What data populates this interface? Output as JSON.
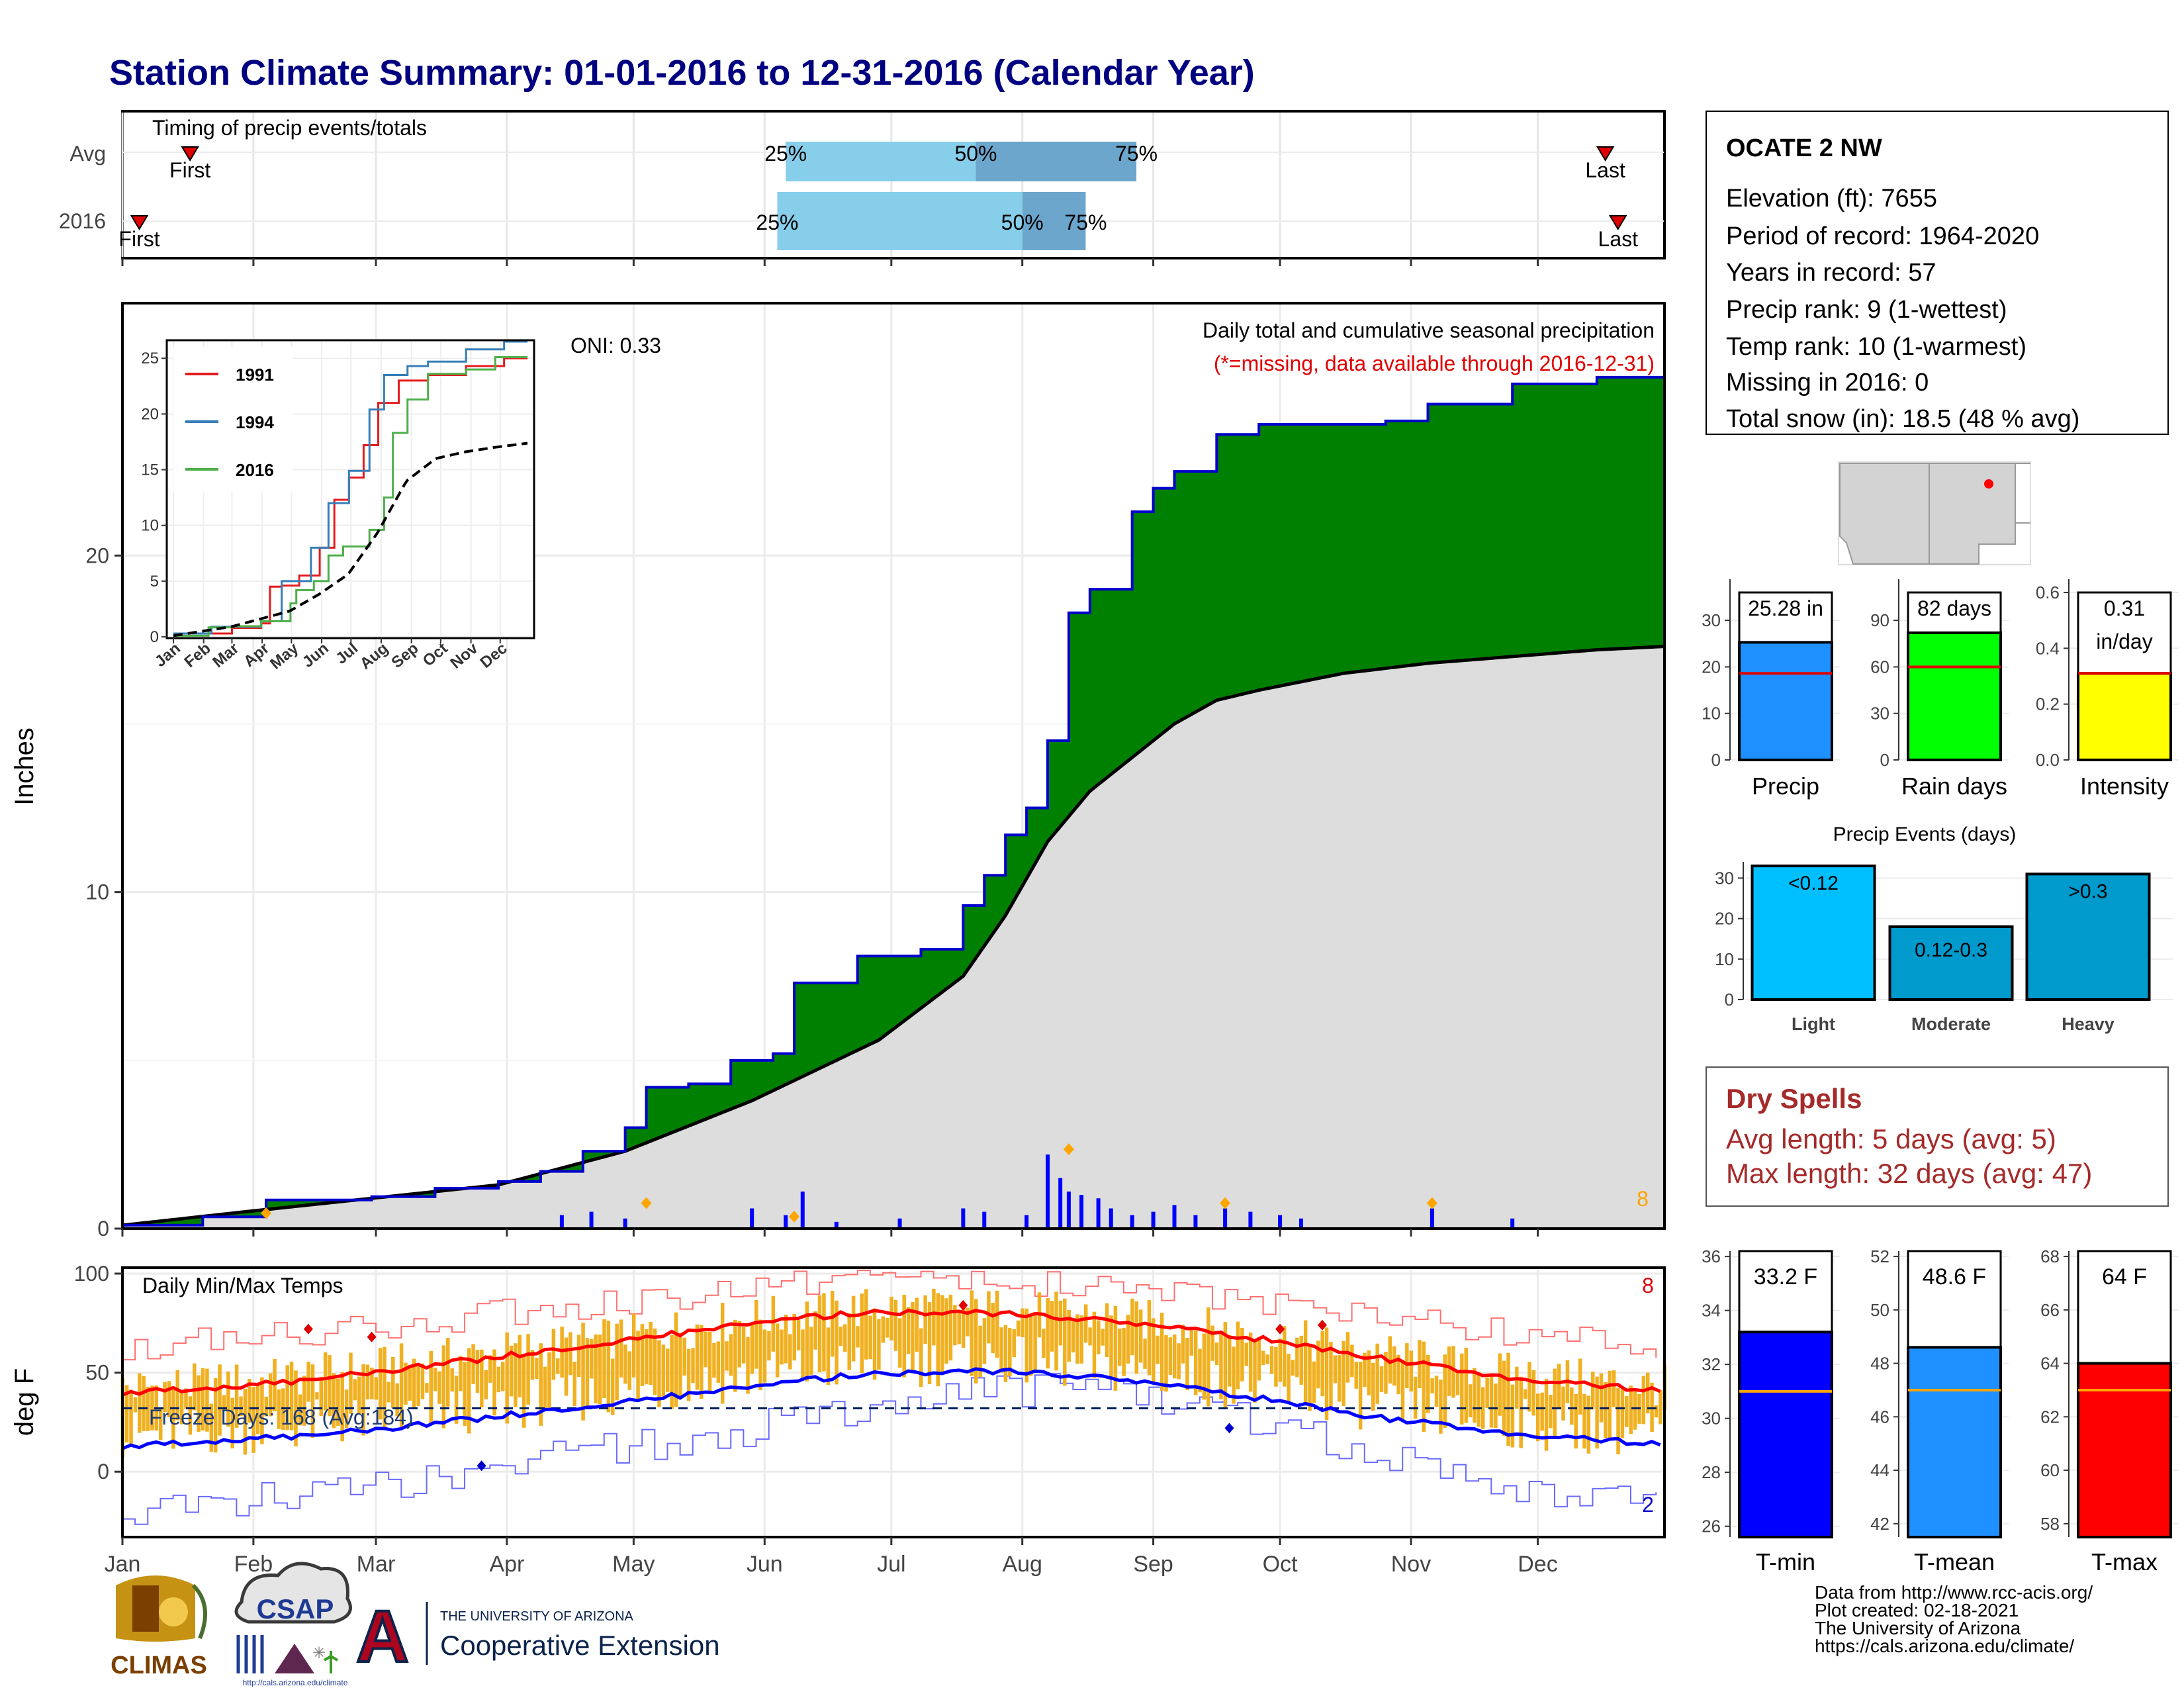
{
  "title": "Station Climate Summary: 01-01-2016 to 12-31-2016 (Calendar Year)",
  "timing": {
    "panel_title": "Timing of precip events/totals",
    "rows": [
      {
        "label": "Avg",
        "first_label": "First",
        "last_label": "Last",
        "first_doy": 17,
        "last_doy": 352,
        "p25_doy": 158,
        "p50_doy": 203,
        "p75_doy": 241,
        "p25_label": "25%",
        "p50_label": "50%",
        "p75_label": "75%"
      },
      {
        "label": "2016",
        "first_label": "First",
        "last_label": "Last",
        "first_doy": 5,
        "last_doy": 355,
        "p25_doy": 156,
        "p50_doy": 214,
        "p75_doy": 229,
        "p25_label": "25%",
        "p50_label": "50%",
        "p75_label": "75%"
      }
    ]
  },
  "precip_panel": {
    "ylabel": "Inches",
    "y_ticks": [
      "0",
      "10",
      "20"
    ],
    "oni": "ONI: 0.33",
    "header": "Daily total and cumulative seasonal precipitation",
    "subheader": "(*=missing, data available through 2016-12-31)",
    "corner_value": "8",
    "colors": {
      "above_avg": "#008000",
      "below_avg": "#8B4513",
      "avg_fill": "#DDDDDD",
      "daily_bar": "#0000FF",
      "cum_line": "#0000CC"
    }
  },
  "month_labels": [
    "Jan",
    "Feb",
    "Mar",
    "Apr",
    "May",
    "Jun",
    "Jul",
    "Aug",
    "Sep",
    "Oct",
    "Nov",
    "Dec"
  ],
  "temp_panel": {
    "ylabel": "deg F",
    "title": "Daily Min/Max Temps",
    "freeze_text": "Freeze Days: 168 (Avg:184)",
    "corner_high": "8",
    "corner_low": "2",
    "y_ticks": [
      "0",
      "50",
      "100"
    ]
  },
  "inset": {
    "legend": [
      "1991",
      "1994",
      "2016"
    ],
    "y_ticks": [
      "0",
      "5",
      "10",
      "15",
      "20",
      "25"
    ],
    "x_ticks": [
      "Jan",
      "Feb",
      "Mar",
      "Apr",
      "May",
      "Jun",
      "Jul",
      "Aug",
      "Sep",
      "Oct",
      "Nov",
      "Dec"
    ],
    "colors": [
      "#E41A1C",
      "#377EB8",
      "#4DAF4A"
    ]
  },
  "station": {
    "name": "OCATE 2 NW",
    "lines": [
      "Elevation (ft): 7655",
      "Period of record: 1964-2020",
      "Years in record: 57",
      "Precip rank: 9 (1-wettest)",
      "Temp rank: 10 (1-warmest)",
      "Missing in 2016: 0",
      "Total snow (in): 18.5 (48 % avg)"
    ]
  },
  "summary_bars": [
    {
      "name": "Precip",
      "value": 25.28,
      "label": "25.28 in",
      "label2": "",
      "avg": 18.6,
      "max": 36,
      "ticks": [
        "0",
        "10",
        "20",
        "30"
      ],
      "tick_vals": [
        0,
        10,
        20,
        30
      ],
      "color": "#1E90FF"
    },
    {
      "name": "Rain days",
      "value": 82,
      "label": "82 days",
      "label2": "",
      "avg": 60,
      "max": 108,
      "ticks": [
        "0",
        "30",
        "60",
        "90"
      ],
      "tick_vals": [
        0,
        30,
        60,
        90
      ],
      "color": "#00FF00"
    },
    {
      "name": "Intensity",
      "value": 0.31,
      "label": "0.31",
      "label2": "in/day",
      "avg": 0.31,
      "max": 0.6,
      "ticks": [
        "0.0",
        "0.2",
        "0.4",
        "0.6"
      ],
      "tick_vals": [
        0,
        0.2,
        0.4,
        0.6
      ],
      "color": "#FFFF00"
    }
  ],
  "precip_events": {
    "title": "Precip Events (days)",
    "ticks": [
      "0",
      "10",
      "20",
      "30"
    ],
    "tick_vals": [
      0,
      10,
      20,
      30
    ],
    "bars": [
      {
        "name": "Light",
        "label": "<0.12",
        "value": 33,
        "color": "#00BFFF"
      },
      {
        "name": "Moderate",
        "label": "0.12-0.3",
        "value": 18,
        "color": "#009ACD"
      },
      {
        "name": "Heavy",
        "label": ">0.3",
        "value": 31,
        "color": "#009ACD"
      }
    ]
  },
  "dry_spells": {
    "title": "Dry Spells",
    "avg": "Avg length: 5 days (avg: 5)",
    "max": "Max length: 32 days (avg: 47)"
  },
  "temp_bars": [
    {
      "name": "T-min",
      "value": 33.2,
      "label": "33.2 F",
      "avg": 31,
      "ymin": 25.6,
      "ymax": 36.2,
      "ticks": [
        "26",
        "28",
        "30",
        "32",
        "34",
        "36"
      ],
      "tick_vals": [
        26,
        28,
        30,
        32,
        34,
        36
      ],
      "color": "#0000FF"
    },
    {
      "name": "T-mean",
      "value": 48.6,
      "label": "48.6 F",
      "avg": 47,
      "ymin": 41.5,
      "ymax": 52.2,
      "ticks": [
        "42",
        "44",
        "46",
        "48",
        "50",
        "52"
      ],
      "tick_vals": [
        42,
        44,
        46,
        48,
        50,
        52
      ],
      "color": "#1E90FF"
    },
    {
      "name": "T-max",
      "value": 64,
      "label": "64 F",
      "avg": 63,
      "ymin": 57.5,
      "ymax": 68.2,
      "ticks": [
        "58",
        "60",
        "62",
        "64",
        "66",
        "68"
      ],
      "tick_vals": [
        58,
        60,
        62,
        64,
        66,
        68
      ],
      "color": "#FF0000"
    }
  ],
  "credits": [
    "Data from http://www.rcc-acis.org/",
    "Plot created: 02-18-2021",
    "The University of Arizona",
    "https://cals.arizona.edu/climate/"
  ],
  "logos": {
    "climas": "CLIMAS",
    "csap": "CSAP",
    "csap_url": "http://cals.arizona.edu/climate",
    "ua_small": "THE UNIVERSITY OF ARIZONA",
    "ua_big": "Cooperative Extension",
    "ua_letter": "A"
  },
  "chart_data": [
    {
      "type": "area",
      "title": "Daily total and cumulative seasonal precipitation",
      "ylabel": "Inches",
      "ylim": [
        0,
        27.5
      ],
      "x_unit": "day of year 2016",
      "cumulative_2016": {
        "x": [
          1,
          20,
          35,
          60,
          75,
          90,
          100,
          110,
          120,
          125,
          135,
          145,
          155,
          160,
          175,
          190,
          200,
          205,
          210,
          215,
          220,
          225,
          230,
          240,
          245,
          250,
          260,
          270,
          300,
          310,
          330,
          350,
          366
        ],
        "y": [
          0.1,
          0.35,
          0.85,
          0.95,
          1.2,
          1.4,
          1.7,
          2.3,
          3.0,
          4.2,
          4.3,
          5.0,
          5.2,
          7.3,
          8.1,
          8.3,
          9.6,
          10.5,
          11.7,
          12.5,
          14.5,
          18.3,
          19.0,
          21.3,
          22.0,
          22.5,
          23.6,
          23.9,
          24.0,
          24.5,
          25.1,
          25.3,
          25.4
        ]
      },
      "average_cumulative": {
        "x": [
          1,
          30,
          60,
          90,
          120,
          150,
          180,
          200,
          210,
          220,
          230,
          240,
          250,
          260,
          270,
          290,
          310,
          330,
          350,
          366
        ],
        "y": [
          0.1,
          0.5,
          0.9,
          1.3,
          2.3,
          3.8,
          5.6,
          7.5,
          9.3,
          11.5,
          13.0,
          14.0,
          15.0,
          15.7,
          16.0,
          16.5,
          16.8,
          17.0,
          17.2,
          17.3
        ]
      },
      "daily_totals": {
        "x": [
          105,
          112,
          120,
          150,
          158,
          162,
          170,
          185,
          200,
          205,
          215,
          220,
          223,
          225,
          228,
          232,
          235,
          240,
          245,
          250,
          255,
          262,
          268,
          275,
          280,
          311,
          330
        ],
        "y": [
          0.4,
          0.5,
          0.3,
          0.6,
          0.4,
          1.1,
          0.2,
          0.3,
          0.6,
          0.5,
          0.4,
          2.2,
          1.5,
          1.1,
          1.0,
          0.9,
          0.6,
          0.4,
          0.5,
          0.7,
          0.4,
          0.6,
          0.5,
          0.4,
          0.3,
          0.6,
          0.3
        ]
      }
    },
    {
      "type": "line",
      "title": "",
      "legend": [
        "1991",
        "1994",
        "2016"
      ],
      "ylim": [
        0,
        26.5
      ],
      "series": [
        {
          "name": "1991",
          "x": [
            1,
            60,
            90,
            100,
            110,
            130,
            150,
            165,
            180,
            195,
            210,
            230,
            260,
            300,
            340,
            366
          ],
          "y": [
            0.3,
            0.8,
            1.2,
            4.5,
            4.6,
            5.5,
            8.0,
            12.3,
            14.3,
            17.2,
            21.0,
            23.0,
            23.5,
            24.3,
            25.0,
            25.6
          ]
        },
        {
          "name": "1994",
          "x": [
            1,
            40,
            90,
            110,
            140,
            160,
            180,
            200,
            215,
            240,
            260,
            300,
            340,
            366
          ],
          "y": [
            0.3,
            0.9,
            1.4,
            5.0,
            8.0,
            12.0,
            14.9,
            20.4,
            23.5,
            24.3,
            24.7,
            25.8,
            26.5,
            26.5
          ]
        },
        {
          "name": "2016",
          "x": [
            1,
            35,
            60,
            90,
            120,
            125,
            145,
            160,
            175,
            200,
            215,
            225,
            240,
            260,
            300,
            330,
            366
          ],
          "y": [
            0.1,
            0.85,
            0.95,
            1.4,
            3.0,
            4.2,
            5.0,
            7.3,
            8.1,
            9.6,
            12.5,
            18.3,
            21.3,
            23.6,
            24.0,
            25.1,
            25.4
          ]
        },
        {
          "name": "",
          "x": [
            1,
            60,
            120,
            150,
            180,
            210,
            240,
            270,
            300,
            330,
            366
          ],
          "y": [
            0.1,
            0.9,
            2.3,
            3.8,
            5.6,
            9.3,
            14.0,
            16.0,
            16.6,
            17.0,
            17.4
          ]
        }
      ]
    },
    {
      "type": "line",
      "title": "Daily Min/Max Temps",
      "ylabel": "deg F",
      "ylim": [
        -33,
        103
      ],
      "series": [
        {
          "name": "",
          "x": [
            1,
            30,
            60,
            90,
            120,
            150,
            180,
            210,
            240,
            270,
            300,
            330,
            366
          ],
          "y": [
            40,
            43,
            50,
            58,
            66,
            75,
            81,
            80,
            75,
            67,
            57,
            47,
            41
          ]
        },
        {
          "name": "",
          "x": [
            1,
            30,
            60,
            90,
            120,
            150,
            180,
            210,
            240,
            270,
            300,
            330,
            366
          ],
          "y": [
            13,
            16,
            21,
            28,
            35,
            43,
            50,
            51,
            46,
            37,
            27,
            19,
            14
          ]
        },
        {
          "name": "",
          "x": [
            1,
            30,
            60,
            90,
            120,
            150,
            180,
            210,
            240,
            270,
            300,
            330,
            366
          ],
          "y": [
            62,
            68,
            73,
            80,
            86,
            93,
            97,
            96,
            91,
            85,
            78,
            70,
            64
          ]
        },
        {
          "name": "",
          "x": [
            1,
            30,
            60,
            90,
            120,
            150,
            180,
            210,
            240,
            270,
            300,
            330,
            366
          ],
          "y": [
            -20,
            -15,
            -7,
            2,
            12,
            22,
            35,
            42,
            38,
            25,
            8,
            -8,
            -20
          ]
        }
      ],
      "freeze_threshold": 32
    }
  ]
}
